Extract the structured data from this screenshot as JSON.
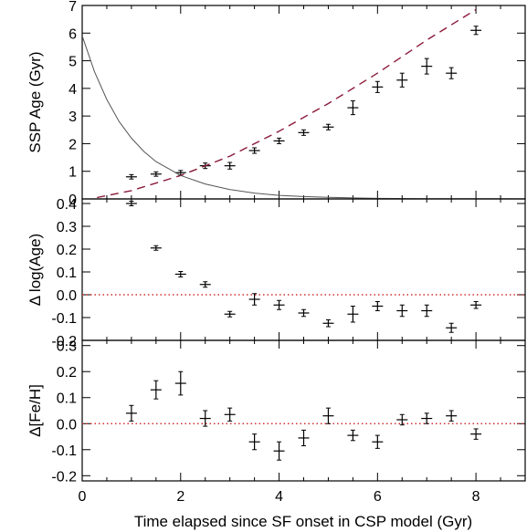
{
  "chart_data": [
    {
      "type": "scatter",
      "panel": "top",
      "ylabel": "SSP Age (Gyr)",
      "xlim": [
        0,
        9
      ],
      "ylim": [
        0,
        7
      ],
      "yticks": [
        0,
        1,
        2,
        3,
        4,
        5,
        6,
        7
      ],
      "grid": false,
      "series": [
        {
          "style": "errorbar",
          "x": [
            1,
            1.5,
            2,
            2.5,
            3,
            3.5,
            4,
            4.5,
            5,
            5.5,
            6,
            6.5,
            7,
            7.5,
            8
          ],
          "y": [
            0.8,
            0.9,
            0.95,
            1.2,
            1.2,
            1.75,
            2.1,
            2.4,
            2.6,
            3.3,
            4.05,
            4.3,
            4.8,
            4.55,
            6.1
          ],
          "yerr": [
            0.08,
            0.08,
            0.08,
            0.1,
            0.12,
            0.1,
            0.1,
            0.1,
            0.1,
            0.25,
            0.2,
            0.25,
            0.28,
            0.2,
            0.15
          ]
        },
        {
          "style": "dashed-line",
          "color": "#8b1a3a",
          "x": [
            0.3,
            1,
            2,
            3,
            4,
            5,
            6,
            7,
            8
          ],
          "y": [
            0.05,
            0.3,
            0.85,
            1.55,
            2.45,
            3.45,
            4.55,
            5.75,
            6.85
          ]
        },
        {
          "style": "solid-line",
          "color": "#555555",
          "x": [
            0,
            0.25,
            0.5,
            0.75,
            1,
            1.25,
            1.5,
            2,
            2.5,
            3,
            3.5,
            4,
            4.5,
            5,
            5.5,
            6,
            7,
            8,
            9
          ],
          "y": [
            5.9,
            4.6,
            3.6,
            2.8,
            2.2,
            1.72,
            1.35,
            0.85,
            0.54,
            0.34,
            0.21,
            0.13,
            0.085,
            0.055,
            0.035,
            0.02,
            0.01,
            0.005,
            0.002
          ]
        }
      ]
    },
    {
      "type": "scatter",
      "panel": "middle",
      "ylabel": "Δ log(Age)",
      "xlim": [
        0,
        9
      ],
      "ylim": [
        -0.2,
        0.42
      ],
      "yticks": [
        -0.2,
        -0.1,
        0.0,
        0.1,
        0.2,
        0.3,
        0.4
      ],
      "ytick_labels": [
        "-0.2",
        "-0.1",
        "0.0",
        "0.1",
        "0.2",
        "0.3",
        "0.4"
      ],
      "reference_line": {
        "y": 0.0,
        "style": "dotted",
        "color": "#d03030"
      },
      "grid": false,
      "series": [
        {
          "style": "errorbar",
          "x": [
            1,
            1.5,
            2,
            2.5,
            3,
            3.5,
            4,
            4.5,
            5,
            5.5,
            6,
            6.5,
            7,
            7.5,
            8
          ],
          "y": [
            0.4,
            0.205,
            0.09,
            0.045,
            -0.085,
            -0.02,
            -0.045,
            -0.08,
            -0.125,
            -0.085,
            -0.05,
            -0.07,
            -0.07,
            -0.145,
            -0.045
          ],
          "yerr": [
            0.01,
            0.01,
            0.012,
            0.012,
            0.012,
            0.025,
            0.02,
            0.015,
            0.015,
            0.035,
            0.02,
            0.025,
            0.025,
            0.02,
            0.015
          ]
        }
      ]
    },
    {
      "type": "scatter",
      "panel": "bottom",
      "ylabel": "Δ[Fe/H]",
      "xlabel": "Time elapsed since SF onset in CSP model (Gyr)",
      "xlim": [
        0,
        9
      ],
      "xticks": [
        0,
        2,
        4,
        6,
        8
      ],
      "ylim": [
        -0.22,
        0.32
      ],
      "yticks": [
        -0.2,
        -0.1,
        0.0,
        0.1,
        0.2,
        0.3
      ],
      "ytick_labels": [
        "-0.2",
        "-0.1",
        "0.0",
        "0.1",
        "0.2",
        "0.3"
      ],
      "reference_line": {
        "y": 0.0,
        "style": "dotted",
        "color": "#d03030"
      },
      "grid": false,
      "series": [
        {
          "style": "errorbar",
          "x": [
            1,
            1.5,
            2,
            2.5,
            3,
            3.5,
            4,
            4.5,
            5,
            5.5,
            6,
            6.5,
            7,
            7.5,
            8
          ],
          "y": [
            0.04,
            0.13,
            0.155,
            0.02,
            0.035,
            -0.07,
            -0.105,
            -0.055,
            0.03,
            -0.045,
            -0.07,
            0.015,
            0.02,
            0.03,
            -0.04
          ],
          "yerr": [
            0.03,
            0.035,
            0.045,
            0.03,
            0.025,
            0.03,
            0.035,
            0.03,
            0.03,
            0.02,
            0.025,
            0.02,
            0.02,
            0.02,
            0.02
          ]
        }
      ]
    }
  ]
}
